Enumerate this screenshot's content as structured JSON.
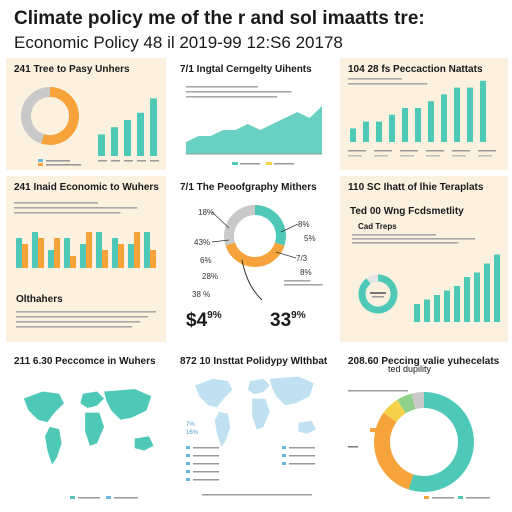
{
  "header": {
    "title": "Climate policy me of the r and sol imaatts tre:",
    "subtitle": "Economic Policy 48 il 2019-99 12:S6 20178"
  },
  "colors": {
    "teal": "#4fc9b7",
    "orange": "#f5a33a",
    "gray": "#c9c9c9",
    "blue": "#6ab9df",
    "yellow": "#f6d24a",
    "green": "#8fd18a",
    "cream": "#fbf1de"
  },
  "panels": {
    "p1": {
      "title": "241 Tree to Pasy Unhers"
    },
    "p2": {
      "title": "7/1 Ingtal Cerngelty Uihents"
    },
    "p3": {
      "title": "104 28 fs Peccaction Nattats"
    },
    "p4": {
      "title": "241 Inaid Economic to Wuhers",
      "footer": "Olthahers"
    },
    "p5": {
      "title": "7/1 The Peoofgraphy Mithers",
      "big_left": "$4",
      "big_left_pct": "9%",
      "big_right": "33",
      "big_right_pct": "9%",
      "labels": [
        "18%",
        "43%",
        "6%",
        "28%",
        "38 %",
        "8%",
        "5%",
        "7/3",
        "8%"
      ]
    },
    "p6": {
      "title": "110 SC Ihatt of lhie Teraplats",
      "subtitle1": "Ted 00 Wng Fcdsmetlity",
      "subtitle2": "Cad Treps"
    },
    "p7": {
      "title": "211 6.30 Peccomce in Wuhers"
    },
    "p8": {
      "title": "872 10 Insttat Polidypy Wlthbat",
      "labels": [
        "7%",
        "16%"
      ]
    },
    "p9": {
      "title": "208.60 Peccing valie yuhecelats",
      "subtitle": "ted dupility"
    }
  },
  "chart_data": [
    {
      "type": "pie",
      "id": "p1-donut",
      "slices": [
        {
          "value": 55,
          "color": "#f5a33a"
        },
        {
          "value": 45,
          "color": "#c9c9c9"
        }
      ]
    },
    {
      "type": "bar",
      "id": "p1-bars",
      "values": [
        3,
        4,
        5,
        6,
        8
      ],
      "ylim": [
        0,
        10
      ]
    },
    {
      "type": "area",
      "id": "p2-area",
      "values": [
        2,
        3,
        3,
        4,
        4,
        5,
        4,
        5,
        6,
        7,
        6,
        8
      ],
      "ylim": [
        0,
        10
      ]
    },
    {
      "type": "bar",
      "id": "p3-bars",
      "values": [
        2,
        3,
        3,
        4,
        5,
        5,
        6,
        7,
        8,
        8,
        9
      ],
      "ylim": [
        0,
        10
      ]
    },
    {
      "type": "bar",
      "id": "p4-bars",
      "series": [
        {
          "values": [
            5,
            6,
            3,
            5,
            4,
            6,
            5,
            4,
            6
          ],
          "color": "#4fc9b7"
        },
        {
          "values": [
            4,
            5,
            5,
            2,
            6,
            3,
            4,
            6,
            3
          ],
          "color": "#f5a33a"
        }
      ],
      "ylim": [
        0,
        7
      ]
    },
    {
      "type": "pie",
      "id": "p5-donut",
      "slices": [
        {
          "value": 30,
          "color": "#4fc9b7"
        },
        {
          "value": 40,
          "color": "#f5a33a"
        },
        {
          "value": 30,
          "color": "#c9c9c9"
        }
      ]
    },
    {
      "type": "pie",
      "id": "p6-donut",
      "slices": [
        {
          "value": 90,
          "color": "#4fc9b7"
        },
        {
          "value": 10,
          "color": "#e4e4e4"
        }
      ]
    },
    {
      "type": "bar",
      "id": "p6-bars",
      "values": [
        2,
        2.5,
        3,
        3.5,
        4,
        5,
        5.5,
        6.5,
        7.5
      ],
      "ylim": [
        0,
        8
      ]
    },
    {
      "type": "pie",
      "id": "p9-donut",
      "slices": [
        {
          "value": 55,
          "color": "#4fc9b7"
        },
        {
          "value": 30,
          "color": "#f5a33a"
        },
        {
          "value": 6,
          "color": "#f6d24a"
        },
        {
          "value": 5,
          "color": "#8fd18a"
        },
        {
          "value": 4,
          "color": "#c9c9c9"
        }
      ]
    }
  ]
}
